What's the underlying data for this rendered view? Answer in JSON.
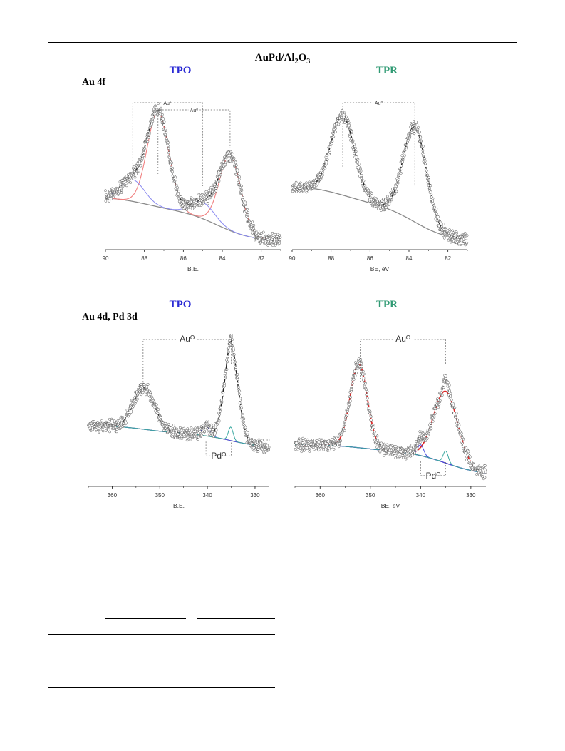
{
  "header": {
    "title": "AuPd/Al",
    "title_sub1": "2",
    "title_mid": "O",
    "title_sub2": "3"
  },
  "conditions": {
    "tpo": "TPO",
    "tpr": "TPR"
  },
  "regions": {
    "au4f": "Au 4f",
    "au4d_pd3d": "Au 4d, Pd 3d"
  },
  "colors": {
    "tpo": "#2a2ad4",
    "tpr": "#2f9a73",
    "envelope": "#222222",
    "background": "#8a8a8a",
    "au_metal": "#f08080",
    "au_red_strong": "#e02828",
    "au_plus": "#8a8af0",
    "pd_metal_blue": "#4a4ae0",
    "pd_metal_teal": "#3aa8a0",
    "bg_purple": "#3a1a9a"
  },
  "chart_data": [
    {
      "id": "au4f-tpo",
      "type": "line",
      "xlabel": "B.E.",
      "xlim": [
        90,
        81
      ],
      "xticks": [
        90,
        88,
        86,
        84,
        82
      ],
      "xtick_labels": [
        "90",
        "88",
        "86",
        "84",
        "82"
      ],
      "annotations": [
        {
          "text": "Au⁺",
          "x1": 88.6,
          "x2": 85.0
        },
        {
          "text": "Au⁰",
          "x1": 87.3,
          "x2": 83.6
        }
      ],
      "series": [
        {
          "role": "raw",
          "peaks": [
            {
              "c": 87.3,
              "h": 0.7,
              "w": 0.55
            },
            {
              "c": 83.6,
              "h": 0.55,
              "w": 0.55
            },
            {
              "c": 88.6,
              "h": 0.16,
              "w": 0.6
            },
            {
              "c": 85.0,
              "h": 0.12,
              "w": 0.6
            }
          ]
        },
        {
          "role": "envelope",
          "peaks": [
            {
              "c": 87.3,
              "h": 0.7,
              "w": 0.55
            },
            {
              "c": 83.6,
              "h": 0.55,
              "w": 0.55
            },
            {
              "c": 88.6,
              "h": 0.16,
              "w": 0.6
            },
            {
              "c": 85.0,
              "h": 0.12,
              "w": 0.6
            }
          ]
        },
        {
          "role": "au_metal",
          "peaks": [
            {
              "c": 87.3,
              "h": 0.7,
              "w": 0.55
            },
            {
              "c": 83.6,
              "h": 0.55,
              "w": 0.55
            }
          ]
        },
        {
          "role": "au_plus",
          "peaks": [
            {
              "c": 88.6,
              "h": 0.16,
              "w": 0.6
            },
            {
              "c": 85.0,
              "h": 0.12,
              "w": 0.6
            }
          ]
        }
      ],
      "shirley": {
        "start": 0.44,
        "end": 0.03,
        "steps": [
          {
            "c": 88.0,
            "h": 0.1
          },
          {
            "c": 84.2,
            "h": 0.23
          }
        ]
      }
    },
    {
      "id": "au4f-tpr",
      "type": "line",
      "xlabel": "BE, eV",
      "xlim": [
        90,
        81
      ],
      "xticks": [
        90,
        88,
        86,
        84,
        82
      ],
      "xtick_labels": [
        "90",
        "88",
        "86",
        "84",
        "82"
      ],
      "annotations": [
        {
          "text": "Au⁰",
          "x1": 87.4,
          "x2": 83.7
        }
      ],
      "series": [
        {
          "role": "raw",
          "peaks": [
            {
              "c": 87.4,
              "h": 0.58,
              "w": 0.62
            },
            {
              "c": 83.7,
              "h": 0.7,
              "w": 0.6
            }
          ]
        },
        {
          "role": "envelope",
          "peaks": [
            {
              "c": 87.4,
              "h": 0.58,
              "w": 0.62
            },
            {
              "c": 83.7,
              "h": 0.7,
              "w": 0.6
            }
          ]
        }
      ],
      "shirley": {
        "start": 0.48,
        "end": 0.03,
        "steps": [
          {
            "c": 87.4,
            "h": 0.13
          },
          {
            "c": 83.7,
            "h": 0.28
          }
        ]
      }
    },
    {
      "id": "au4d-tpo",
      "type": "line",
      "xlabel": "B.E.",
      "xlim": [
        365,
        327
      ],
      "xticks": [
        360,
        350,
        340,
        330
      ],
      "xtick_labels": [
        "360",
        "350",
        "340",
        "330"
      ],
      "annotations": [
        {
          "text": "Auᴼ",
          "x1": 353.5,
          "x2": 335.0,
          "above": true
        },
        {
          "text": "Pdᴼ",
          "x1": 340.3,
          "x2": 335.0,
          "above": false
        }
      ],
      "series": [
        {
          "role": "raw",
          "peaks": [
            {
              "c": 353.3,
              "h": 0.31,
              "w": 2.2
            },
            {
              "c": 335.0,
              "h": 0.66,
              "w": 1.5
            },
            {
              "c": 340.3,
              "h": 0.07,
              "w": 0.8
            },
            {
              "c": 335.1,
              "h": 0.08,
              "w": 0.5
            }
          ]
        },
        {
          "role": "envelope",
          "peaks": [
            {
              "c": 353.3,
              "h": 0.31,
              "w": 2.2
            },
            {
              "c": 335.0,
              "h": 0.66,
              "w": 1.5
            },
            {
              "c": 340.3,
              "h": 0.07,
              "w": 0.8
            },
            {
              "c": 335.1,
              "h": 0.08,
              "w": 0.5
            }
          ]
        },
        {
          "role": "pd_metal_blue",
          "peaks": [
            {
              "c": 340.3,
              "h": 0.07,
              "w": 0.8
            }
          ]
        },
        {
          "role": "pd_metal_teal",
          "peaks": [
            {
              "c": 335.1,
              "h": 0.1,
              "w": 0.5
            }
          ]
        }
      ],
      "shirley": {
        "start": 0.42,
        "end": 0.25,
        "steps": [
          {
            "c": 353.3,
            "h": 0.06
          },
          {
            "c": 335.0,
            "h": 0.11
          }
        ]
      }
    },
    {
      "id": "au4d-tpr",
      "type": "line",
      "xlabel": "BE, eV",
      "xlim": [
        365,
        327
      ],
      "xticks": [
        360,
        350,
        340,
        330
      ],
      "xtick_labels": [
        "360",
        "350",
        "340",
        "330"
      ],
      "annotations": [
        {
          "text": "Auᴼ",
          "x1": 352.0,
          "x2": 335.0,
          "above": true
        },
        {
          "text": "Pdᴼ",
          "x1": 340.0,
          "x2": 335.0,
          "above": false
        }
      ],
      "series": [
        {
          "role": "raw",
          "peaks": [
            {
              "c": 352.3,
              "h": 0.62,
              "w": 1.7
            },
            {
              "c": 335.0,
              "h": 0.53,
              "w": 2.4
            },
            {
              "c": 340.0,
              "h": 0.08,
              "w": 0.6
            },
            {
              "c": 335.0,
              "h": 0.08,
              "w": 0.5
            }
          ]
        },
        {
          "role": "au_red_strong",
          "peaks": [
            {
              "c": 352.3,
              "h": 0.62,
              "w": 1.7
            },
            {
              "c": 335.0,
              "h": 0.53,
              "w": 2.4
            }
          ]
        },
        {
          "role": "pd_metal_blue",
          "peaks": [
            {
              "c": 340.0,
              "h": 0.08,
              "w": 0.6
            }
          ]
        },
        {
          "role": "pd_metal_teal",
          "peaks": [
            {
              "c": 335.0,
              "h": 0.09,
              "w": 0.5
            }
          ]
        }
      ],
      "shirley": {
        "start": 0.28,
        "end": 0.05,
        "steps": [
          {
            "c": 352.3,
            "h": 0.05
          },
          {
            "c": 335.0,
            "h": 0.18
          }
        ]
      }
    }
  ]
}
